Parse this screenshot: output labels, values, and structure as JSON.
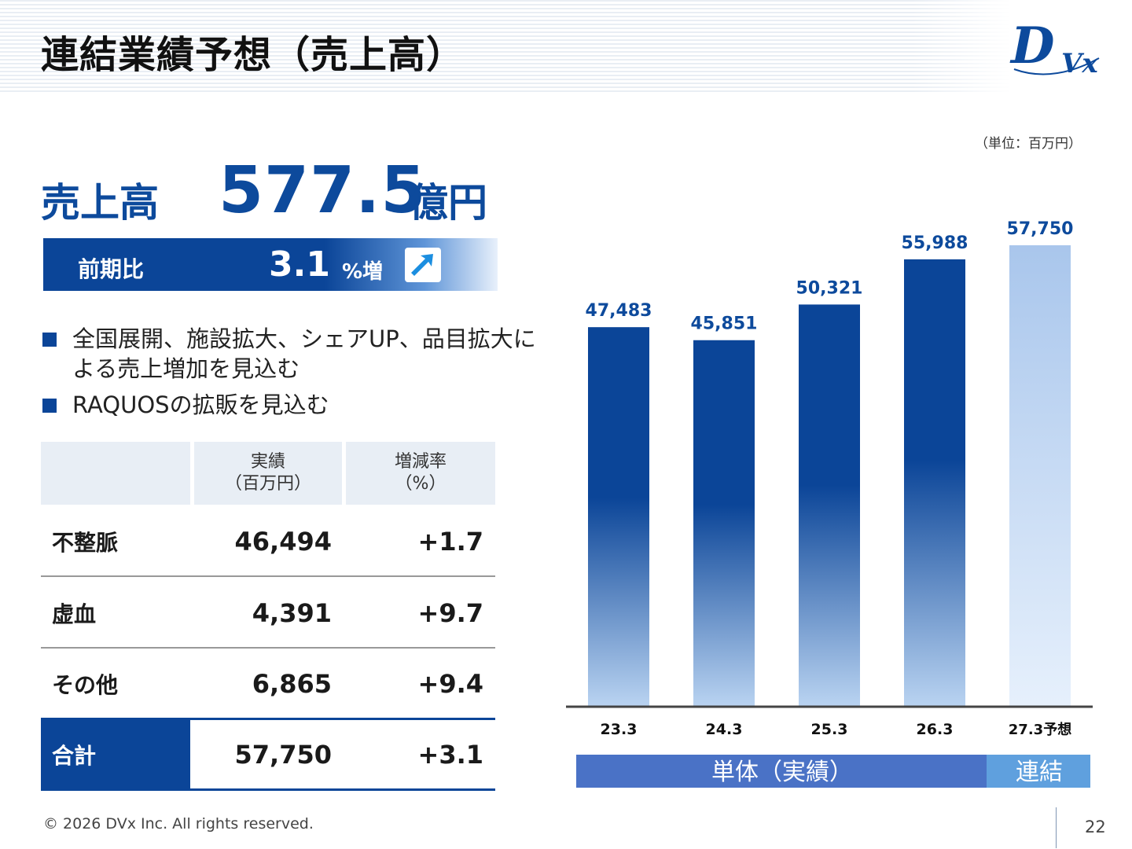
{
  "title": "連結業績予想（売上高）",
  "logo_text": "DVx",
  "unit_note": "（単位：百万円）",
  "headline": {
    "label": "売上高",
    "value": "577.5",
    "unit": "億円"
  },
  "yoy": {
    "label": "前期比",
    "value": "3.1",
    "unit": "%増",
    "icon": "arrow-up-right-icon"
  },
  "bullets": [
    "全国展開、施設拡大、シェアUP、品目拡大による売上増加を見込む",
    "RAQUOSの拡販を見込む"
  ],
  "table": {
    "headers": [
      "",
      "実績\n（百万円）",
      "増減率\n（%）"
    ],
    "header_1_line1": "実績",
    "header_1_line2": "（百万円）",
    "header_2_line1": "増減率",
    "header_2_line2": "（%）",
    "rows": [
      {
        "label": "不整脈",
        "value": "46,494",
        "change": "+1.7"
      },
      {
        "label": "虚血",
        "value": "4,391",
        "change": "+9.7"
      },
      {
        "label": "その他",
        "value": "6,865",
        "change": "+9.4"
      }
    ],
    "total": {
      "label": "合計",
      "value": "57,750",
      "change": "+3.1"
    }
  },
  "chart_data": {
    "type": "bar",
    "categories": [
      "23.3",
      "24.3",
      "25.3",
      "26.3",
      "27.3予想"
    ],
    "values": [
      47483,
      45851,
      50321,
      55988,
      57750
    ],
    "value_labels": [
      "47,483",
      "45,851",
      "50,321",
      "55,988",
      "57,750"
    ],
    "ylim": [
      0,
      57750
    ],
    "grid": false,
    "colors": {
      "actual_top": "#0b4598",
      "actual_bottom": "#b9d3f1",
      "forecast_top": "#a9c6ec",
      "forecast_bottom": "#e6f0fc",
      "label": "#0d4a9c"
    },
    "groups": [
      {
        "label": "単体（実績）",
        "from": 0,
        "to": 3,
        "color": "#4a72c6"
      },
      {
        "label": "連結",
        "from": 4,
        "to": 4,
        "color": "#5fa0de"
      }
    ]
  },
  "footer": {
    "copyright": "© 2026 DVx Inc. All rights reserved.",
    "page": "22"
  }
}
